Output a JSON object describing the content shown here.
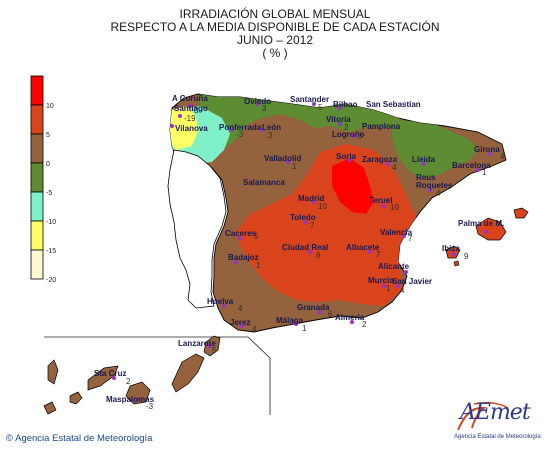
{
  "title": {
    "line1": "IRRADIACIÓN GLOBAL MENSUAL",
    "line2": "RESPECTO A LA MEDIA DISPONIBLE DE CADA ESTACIÓN",
    "line3": "JUNIO – 2012",
    "line4": "( % )"
  },
  "legend": {
    "labels": [
      "10",
      "5",
      "0",
      "-5",
      "-10",
      "-15",
      "-20"
    ],
    "colors": [
      "#ff0000",
      "#d9441c",
      "#94623c",
      "#5e8c32",
      "#7ff0c8",
      "#ffff66",
      "#fff8d0"
    ]
  },
  "colors": {
    "sea": "#ffffff",
    "coast": "#000000",
    "station_dot": "#9933cc"
  },
  "stations": [
    {
      "name": "A Coruña",
      "value": "3"
    },
    {
      "name": "Santiago",
      "value": "-19"
    },
    {
      "name": "Vilanova",
      "value": ""
    },
    {
      "name": "Oviedo",
      "value": "3"
    },
    {
      "name": "Ponferrada",
      "value": "-3"
    },
    {
      "name": "León",
      "value": "3"
    },
    {
      "name": "Santander",
      "value": "5"
    },
    {
      "name": "Bilbao",
      "value": ""
    },
    {
      "name": "San Sebastian",
      "value": ""
    },
    {
      "name": "Vitoria",
      "value": "2"
    },
    {
      "name": "Pamplona",
      "value": ""
    },
    {
      "name": "Logroño",
      "value": "0"
    },
    {
      "name": "Valladolid",
      "value": "1"
    },
    {
      "name": "Soria",
      "value": ""
    },
    {
      "name": "Zaragoza",
      "value": "4"
    },
    {
      "name": "Lleida",
      "value": ""
    },
    {
      "name": "Girona",
      "value": "4"
    },
    {
      "name": "Barcelona",
      "value": "1"
    },
    {
      "name": "Reus",
      "value": ""
    },
    {
      "name": "Roquetes",
      "value": "4"
    },
    {
      "name": "Salamanca",
      "value": ""
    },
    {
      "name": "Madrid",
      "value": "10"
    },
    {
      "name": "Teruel",
      "value": "10"
    },
    {
      "name": "Toledo",
      "value": "7"
    },
    {
      "name": "Valencia",
      "value": "7"
    },
    {
      "name": "Caceres",
      "value": "5"
    },
    {
      "name": "Ciudad Real",
      "value": "8"
    },
    {
      "name": "Albacete",
      "value": "7"
    },
    {
      "name": "Palma de M.",
      "value": ""
    },
    {
      "name": "Ibiza",
      "value": "9"
    },
    {
      "name": "Badajoz",
      "value": "1"
    },
    {
      "name": "Alicante",
      "value": ""
    },
    {
      "name": "Murcia",
      "value": "1"
    },
    {
      "name": "San Javier",
      "value": "4"
    },
    {
      "name": "Huelva",
      "value": "4"
    },
    {
      "name": "Granada",
      "value": "6"
    },
    {
      "name": "Jerez",
      "value": "4"
    },
    {
      "name": "Málaga",
      "value": "1"
    },
    {
      "name": "Almería",
      "value": "2"
    },
    {
      "name": "Lanzarote",
      "value": "5"
    },
    {
      "name": "Sta Cruz",
      "value": "2"
    },
    {
      "name": "Maspalomas",
      "value": "-3"
    }
  ],
  "credit": "Agencia Estatal de Meteorología",
  "logo": {
    "word": "AEmet",
    "sub": "Agencia Estatal de Meteorología"
  }
}
